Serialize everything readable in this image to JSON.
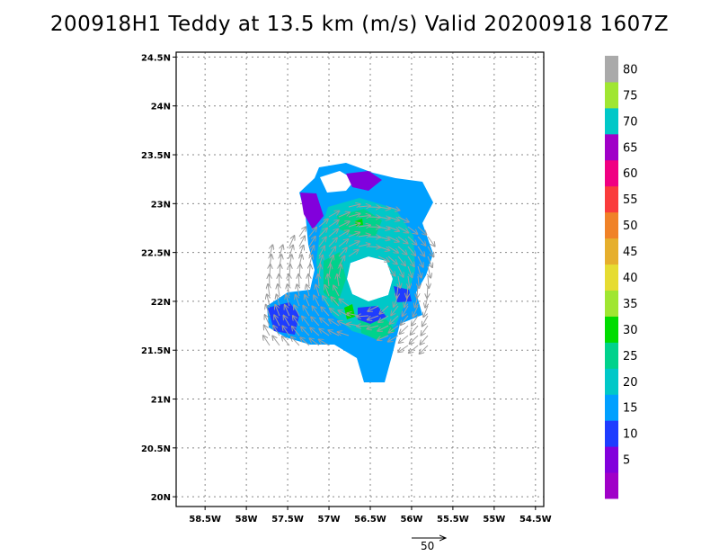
{
  "title": "200918H1 Teddy at 13.5 km (m/s) Valid 20200918 1607Z",
  "map": {
    "lon_range": [
      -58.85,
      -54.4
    ],
    "lat_range": [
      19.9,
      24.55
    ],
    "lon_ticks": [
      {
        "value": -58.5,
        "label": "58.5W"
      },
      {
        "value": -58.0,
        "label": "58W"
      },
      {
        "value": -57.5,
        "label": "57.5W"
      },
      {
        "value": -57.0,
        "label": "57W"
      },
      {
        "value": -56.5,
        "label": "56.5W"
      },
      {
        "value": -56.0,
        "label": "56W"
      },
      {
        "value": -55.5,
        "label": "55.5W"
      },
      {
        "value": -55.0,
        "label": "55W"
      },
      {
        "value": -54.5,
        "label": "54.5W"
      }
    ],
    "lat_ticks": [
      {
        "value": 20.0,
        "label": "20N"
      },
      {
        "value": 20.5,
        "label": "20.5N"
      },
      {
        "value": 21.0,
        "label": "21N"
      },
      {
        "value": 21.5,
        "label": "21.5N"
      },
      {
        "value": 22.0,
        "label": "22N"
      },
      {
        "value": 22.5,
        "label": "22.5N"
      },
      {
        "value": 23.0,
        "label": "23N"
      },
      {
        "value": 23.5,
        "label": "23.5N"
      },
      {
        "value": 24.0,
        "label": "24N"
      },
      {
        "value": 24.5,
        "label": "24.5N"
      }
    ],
    "grid": "dotted",
    "storm_center": {
      "lon": -56.55,
      "lat": 22.2
    }
  },
  "colorbar": {
    "labels": [
      "5",
      "10",
      "15",
      "20",
      "25",
      "30",
      "35",
      "40",
      "45",
      "50",
      "55",
      "60",
      "65",
      "70",
      "75",
      "80"
    ],
    "colors": [
      "#a000c8",
      "#8200dc",
      "#1e3cff",
      "#00a0ff",
      "#00c8c8",
      "#00d28c",
      "#00dc00",
      "#a0e632",
      "#e6dc32",
      "#e6af2d",
      "#f08228",
      "#fa3c3c",
      "#f00082",
      "#a000c8",
      "#00c8c8",
      "#a0e632",
      "#aaaaaa"
    ]
  },
  "reference_vector": {
    "label": "50"
  }
}
